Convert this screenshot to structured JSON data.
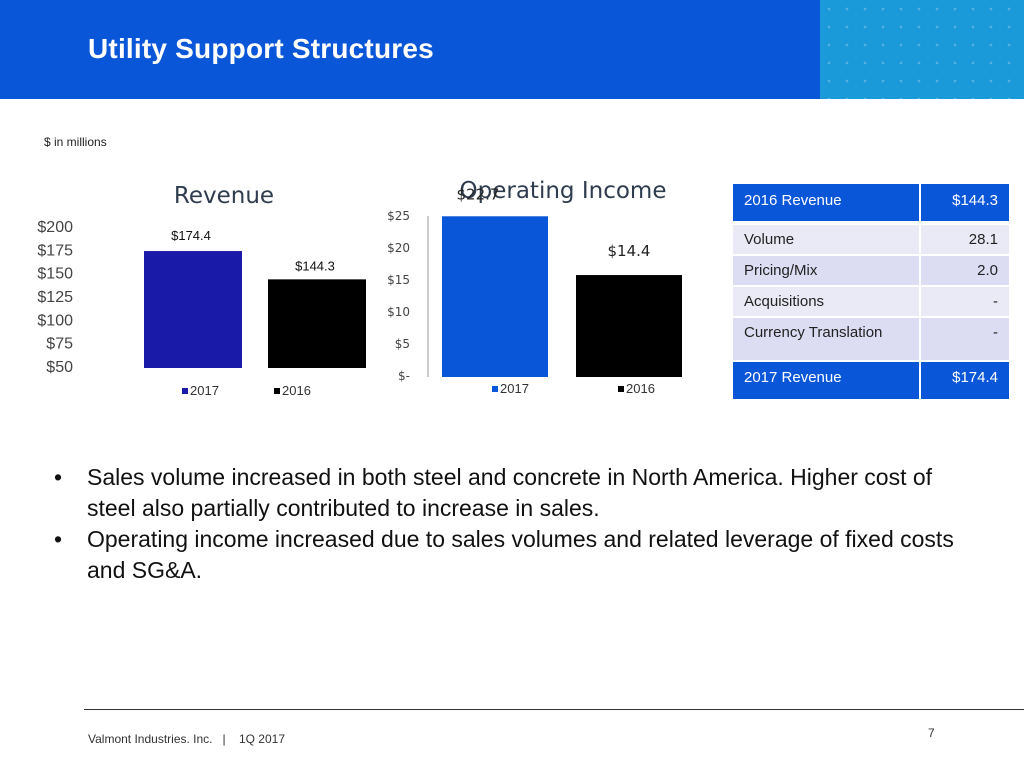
{
  "header": {
    "title": "Utility Support Structures"
  },
  "units_note": "$ in millions",
  "colors": {
    "header_blue": "#0a56d9",
    "header_dots": "#1a9ad8",
    "revenue_2017": "#1a1aa8",
    "income_2017": "#0a56d9",
    "bar_2016": "#000000"
  },
  "chart_data": [
    {
      "type": "bar",
      "title": "Revenue",
      "categories": [
        "2017",
        "2016"
      ],
      "values": [
        174.4,
        144.3
      ],
      "data_labels": [
        "$174.4",
        "$144.3"
      ],
      "y_ticks": [
        "$200",
        "$175",
        "$150",
        "$125",
        "$100",
        "$75",
        "$50"
      ],
      "ylim": [
        50,
        200
      ],
      "legend": [
        "2017",
        "2016"
      ],
      "legend_position": "bottom"
    },
    {
      "type": "bar",
      "title": "Operating Income",
      "categories": [
        "2017",
        "2016"
      ],
      "values": [
        22.7,
        14.4
      ],
      "data_labels": [
        "$22.7",
        "$14.4"
      ],
      "y_ticks": [
        "$25",
        "$20",
        "$15",
        "$10",
        "$5",
        "$-"
      ],
      "ylim": [
        0,
        25
      ],
      "legend": [
        "2017",
        "2016"
      ],
      "legend_position": "bottom"
    }
  ],
  "bridge": {
    "start": {
      "label": "2016 Revenue",
      "value": "$144.3"
    },
    "rows": [
      {
        "label": "Volume",
        "value": "28.1"
      },
      {
        "label": "Pricing/Mix",
        "value": "2.0"
      },
      {
        "label": "Acquisitions",
        "value": "-"
      },
      {
        "label": "Currency Translation",
        "value": "-"
      }
    ],
    "end": {
      "label": "2017 Revenue",
      "value": "$174.4"
    }
  },
  "bullets": [
    "Sales volume increased in both steel and concrete in North America.  Higher cost of steel also partially contributed to increase in sales.",
    "Operating income increased due to sales volumes and related leverage of fixed costs and SG&A."
  ],
  "bullet_glyph": "•",
  "footer": {
    "text": "Valmont Industries. Inc.   |    1Q 2017",
    "page": "7"
  }
}
